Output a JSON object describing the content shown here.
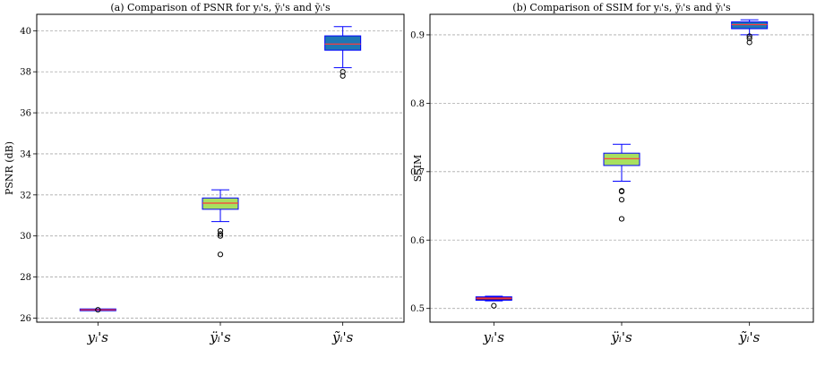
{
  "chart_data": [
    {
      "type": "box",
      "title": "(a) Comparison of PSNR for yᵢ's, ÿᵢ's and ỹᵢ's",
      "xlabel": "",
      "ylabel": "PSNR (dB)",
      "ylim": [
        25.8,
        40.8
      ],
      "yticks": [
        26,
        28,
        30,
        32,
        34,
        36,
        38,
        40
      ],
      "categories": [
        "yᵢ's",
        "ÿᵢ's",
        "ỹᵢ's"
      ],
      "grid": "horizontal dashed",
      "boxes": [
        {
          "whisker_low": 26.38,
          "q1": 26.38,
          "median": 26.4,
          "q3": 26.42,
          "whisker_high": 26.42,
          "outliers": [
            26.4
          ]
        },
        {
          "whisker_low": 30.7,
          "q1": 31.3,
          "median": 31.6,
          "q3": 31.85,
          "whisker_high": 32.25,
          "outliers": [
            30.25,
            30.1,
            30.0,
            29.1
          ]
        },
        {
          "whisker_low": 38.2,
          "q1": 39.05,
          "median": 39.35,
          "q3": 39.75,
          "whisker_high": 40.2,
          "outliers": [
            38.0,
            37.8
          ]
        }
      ]
    },
    {
      "type": "box",
      "title": "(b) Comparison of SSIM for yᵢ's, ÿᵢ's and ỹᵢ's",
      "xlabel": "",
      "ylabel": "SSIM",
      "ylim": [
        0.48,
        0.93
      ],
      "yticks": [
        0.5,
        0.6,
        0.7,
        0.8,
        0.9
      ],
      "categories": [
        "yᵢ's",
        "ÿᵢ's",
        "ỹᵢ's"
      ],
      "grid": "horizontal dashed",
      "boxes": [
        {
          "whisker_low": 0.511,
          "q1": 0.512,
          "median": 0.515,
          "q3": 0.517,
          "whisker_high": 0.518,
          "outliers": [
            0.504
          ]
        },
        {
          "whisker_low": 0.686,
          "q1": 0.709,
          "median": 0.719,
          "q3": 0.727,
          "whisker_high": 0.74,
          "outliers": [
            0.672,
            0.671,
            0.659,
            0.631
          ]
        },
        {
          "whisker_low": 0.9,
          "q1": 0.909,
          "median": 0.915,
          "q3": 0.919,
          "whisker_high": 0.922,
          "outliers": [
            0.898,
            0.895,
            0.889
          ]
        }
      ]
    }
  ],
  "colors": {
    "box_fill": [
      "#7d1b52",
      "#a8e05f",
      "#1f77b4"
    ],
    "box_edge": "#0000ff",
    "median": "#ff3b3b",
    "grid": "#aaaaaa",
    "outlier": "#000000"
  }
}
